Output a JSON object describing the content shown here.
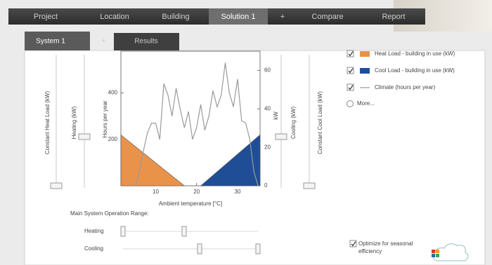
{
  "nav": {
    "tabs": [
      "Project",
      "Location",
      "Building",
      "Solution 1",
      "+",
      "Compare",
      "Report"
    ],
    "active": 3
  },
  "subtabs": {
    "tabs": [
      "System 1",
      "+",
      "Results"
    ]
  },
  "sliders": {
    "left": [
      "Constant Heat Load (kW)",
      "Heating (kW)"
    ],
    "right": [
      "Cooling (kW)",
      "Constant Cool Load (kW)"
    ]
  },
  "chart_data": {
    "type": "line",
    "x_label": "Ambient temperature [°C]",
    "y_label": "Hours per year",
    "y2_label": "kW",
    "xlim": [
      1.5,
      35.5
    ],
    "xticks": [
      10,
      20,
      30
    ],
    "ylim": [
      0,
      580
    ],
    "yticks": [
      200,
      400
    ],
    "y2lim": [
      0,
      70
    ],
    "y2ticks": [
      0,
      20,
      40,
      60
    ],
    "series": [
      {
        "name": "Heat Load - building in use (kW)",
        "color": "#e8924a",
        "axis": "y2",
        "fill": true,
        "x": [
          1.5,
          17
        ],
        "values": [
          26.5,
          0
        ]
      },
      {
        "name": "Cool Load - building in use (kW)",
        "color": "#1f4e96",
        "axis": "y2",
        "fill": true,
        "x": [
          21,
          35.5
        ],
        "values": [
          0,
          26.5
        ]
      },
      {
        "name": "Climate (hours per year)",
        "color": "#9a9a9a",
        "fill": false,
        "x": [
          5,
          6,
          7,
          8,
          9,
          10,
          11,
          12,
          13,
          14,
          15,
          16,
          17,
          18,
          19,
          20,
          21,
          22,
          23,
          24,
          25,
          26,
          27,
          28,
          29,
          30,
          31,
          32,
          33,
          34,
          35
        ],
        "values": [
          0,
          60,
          150,
          230,
          270,
          270,
          200,
          440,
          390,
          300,
          420,
          330,
          250,
          320,
          200,
          250,
          350,
          240,
          300,
          410,
          340,
          390,
          530,
          400,
          340,
          460,
          280,
          270,
          200,
          60,
          0
        ]
      }
    ],
    "legend_more": "More..."
  },
  "operation_range": {
    "title": "Main System Operation Range:",
    "rows": [
      "Heating",
      "Cooling"
    ]
  },
  "options": {
    "optimize": "Optimize for seasonal efficiency"
  }
}
